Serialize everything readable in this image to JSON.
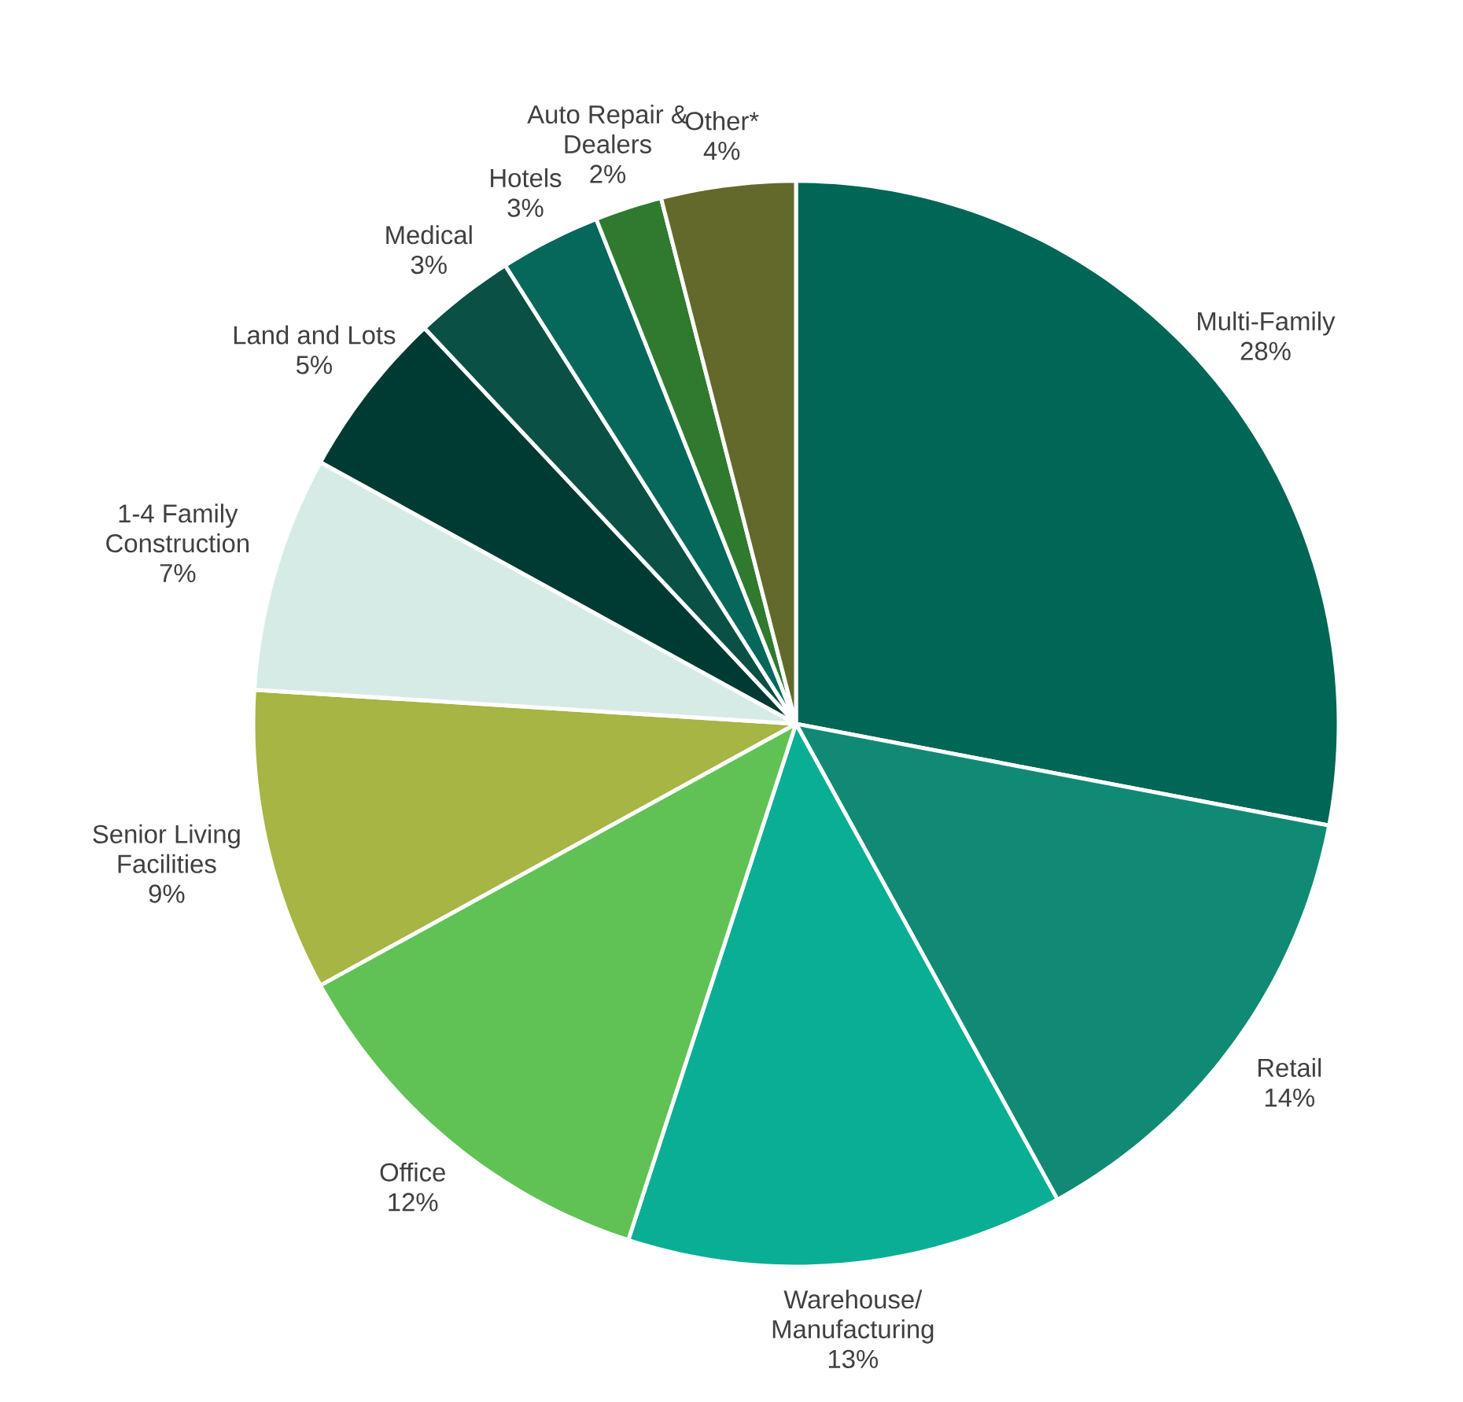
{
  "chart_data": {
    "type": "pie",
    "categories": [
      "Multi-Family",
      "Retail",
      "Warehouse/ Manufacturing",
      "Office",
      "Senior Living Facilities",
      "1-4 Family Construction",
      "Land and Lots",
      "Medical",
      "Hotels",
      "Auto Repair & Dealers",
      "Other*"
    ],
    "values": [
      28,
      14,
      13,
      12,
      9,
      7,
      5,
      3,
      3,
      2,
      4
    ],
    "value_labels": [
      "28%",
      "14%",
      "13%",
      "12%",
      "9%",
      "7%",
      "5%",
      "3%",
      "3%",
      "2%",
      "4%"
    ],
    "colors": [
      "#006655",
      "#118a75",
      "#0aae94",
      "#60c255",
      "#a6b543",
      "#d6ebe6",
      "#003b33",
      "#0b5045",
      "#06685a",
      "#2f7a2e",
      "#63692a"
    ]
  }
}
